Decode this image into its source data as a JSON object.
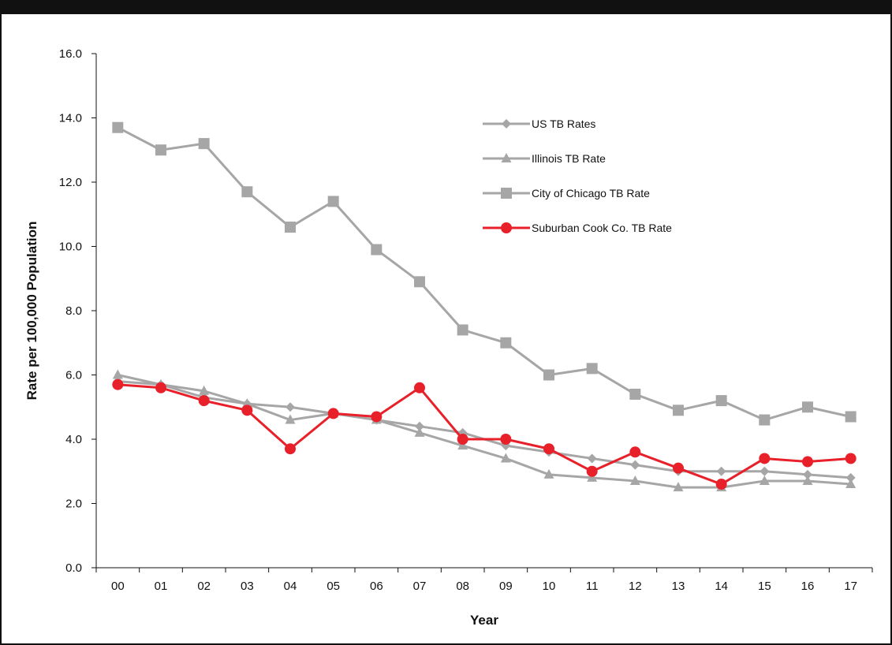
{
  "chart_data": {
    "type": "line",
    "title": "",
    "xlabel": "Year",
    "ylabel": "Rate per 100,000 Population",
    "ylim": [
      0,
      16
    ],
    "yticks": [
      "0.0",
      "2.0",
      "4.0",
      "6.0",
      "8.0",
      "10.0",
      "12.0",
      "14.0",
      "16.0"
    ],
    "categories": [
      "00",
      "01",
      "02",
      "03",
      "04",
      "05",
      "06",
      "07",
      "08",
      "09",
      "10",
      "11",
      "12",
      "13",
      "14",
      "15",
      "16",
      "17"
    ],
    "grid": false,
    "legend_position": "upper-right",
    "series": [
      {
        "name": "US TB Rates",
        "marker": "diamond",
        "color": "#a6a6a6",
        "values": [
          5.8,
          5.7,
          5.3,
          5.1,
          5.0,
          4.8,
          4.6,
          4.4,
          4.2,
          3.8,
          3.6,
          3.4,
          3.2,
          3.0,
          3.0,
          3.0,
          2.9,
          2.8
        ]
      },
      {
        "name": "Illinois TB Rate",
        "marker": "triangle",
        "color": "#a6a6a6",
        "values": [
          6.0,
          5.7,
          5.5,
          5.1,
          4.6,
          4.8,
          4.6,
          4.2,
          3.8,
          3.4,
          2.9,
          2.8,
          2.7,
          2.5,
          2.5,
          2.7,
          2.7,
          2.6
        ]
      },
      {
        "name": "City of Chicago TB Rate",
        "marker": "square",
        "color": "#a6a6a6",
        "values": [
          13.7,
          13.0,
          13.2,
          11.7,
          10.6,
          11.4,
          9.9,
          8.9,
          7.4,
          7.0,
          6.0,
          6.2,
          5.4,
          4.9,
          5.2,
          4.6,
          5.0,
          4.7
        ]
      },
      {
        "name": "Suburban Cook Co. TB Rate",
        "marker": "circle",
        "color": "#e8202a",
        "values": [
          5.7,
          5.6,
          5.2,
          4.9,
          3.7,
          4.8,
          4.7,
          5.6,
          4.0,
          4.0,
          3.7,
          3.0,
          3.6,
          3.1,
          2.6,
          3.4,
          3.3,
          3.4
        ]
      }
    ]
  }
}
